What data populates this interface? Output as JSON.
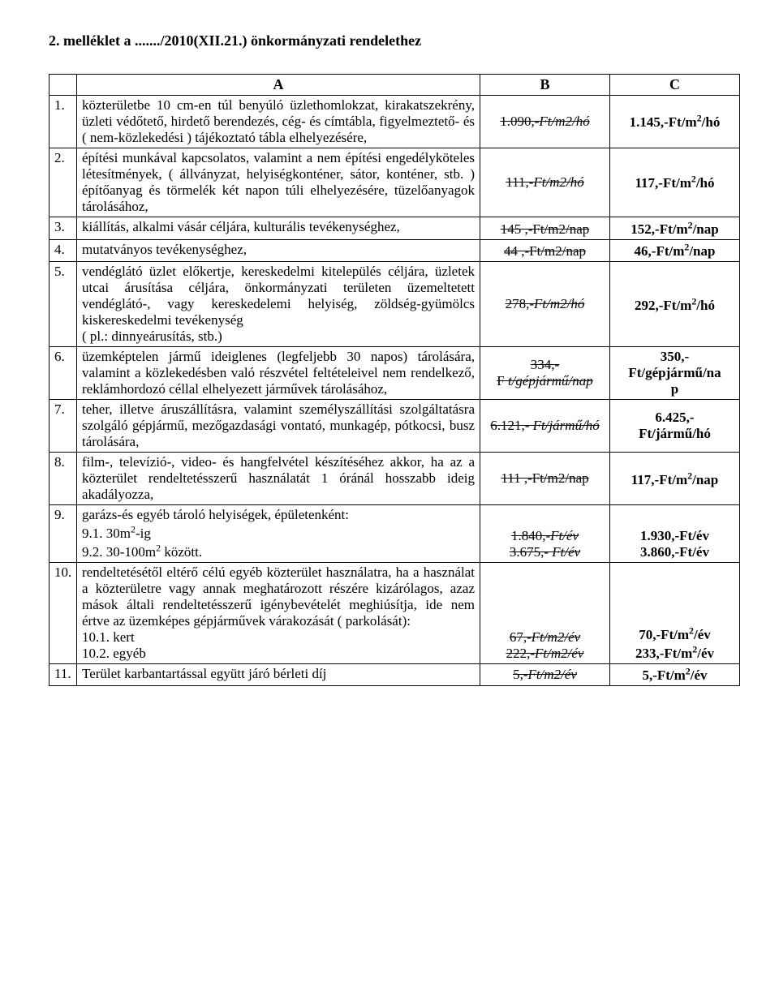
{
  "title": "2. melléklet a ......./2010(XII.21.) önkormányzati rendelethez",
  "header": {
    "A": "A",
    "B": "B",
    "C": "C"
  },
  "rows": [
    {
      "n": "1.",
      "a": "közterületbe 10 cm-en túl benyúló üzlethomlokzat, kirakatszekrény, üzleti védőtető, hirdető berendezés, cég- és címtábla, figyelmeztető- és ( nem-közlekedési ) tájékoztató tábla elhelyezésére,",
      "b_strike": "1.090",
      "b_italic": ",-Ft/m2/hó",
      "c": "1.145,-Ft/m",
      "c_sup": "2",
      "c_tail": "/hó"
    },
    {
      "n": "2.",
      "a": "építési munkával kapcsolatos, valamint a nem építési engedélyköteles létesítmények, ( állványzat, helyiségkonténer, sátor, konténer, stb. ) építőanyag és törmelék két napon túli elhelyezésére, tüzelőanyagok tárolásához,",
      "b_strike": "111",
      "b_italic": ",-Ft/m2/hó",
      "c": "117,-Ft/m",
      "c_sup": "2",
      "c_tail": "/hó"
    },
    {
      "n": "3.",
      "a": "kiállítás, alkalmi vásár céljára, kulturális tevékenységhez,",
      "b_strike": "145",
      "b_plain": " ,-Ft/m2/nap",
      "c": "152,-Ft/m",
      "c_sup": "2",
      "c_tail": "/nap"
    },
    {
      "n": "4.",
      "a": "mutatványos tevékenységhez,",
      "b_strike": "44",
      "b_plain": " ,-Ft/m2/nap",
      "c": "46,-Ft/m",
      "c_sup": "2",
      "c_tail": "/nap"
    },
    {
      "n": "5.",
      "a": "vendéglátó üzlet előkertje, kereskedelmi kitelepülés céljára, üzletek utcai árusítása céljára, önkormányzati területen üzemeltetett vendéglátó-, vagy kereskedelemi helyiség, zöldség-gyümölcs kiskereskedelmi tevékenység\n( pl.: dinnyeárusítás, stb.)",
      "b_strike": "278",
      "b_italic": ",-Ft/m2/hó",
      "c": "292,-Ft/m",
      "c_sup": "2",
      "c_tail": "/hó"
    },
    {
      "n": "6.",
      "a": "üzemképtelen jármű ideiglenes (legfeljebb 30 napos) tárolására, valamint a közlekedésben való részvétel feltételeivel nem rendelkező, reklámhordozó céllal elhelyezett járművek tárolásához,",
      "b_line1_strike": "334,-",
      "b_line2_strike": "F",
      "b_line2_italic": " t/gépjármű/nap",
      "c_line1": "350,-",
      "c_line2": "Ft/gépjármű/na",
      "c_line3": "p"
    },
    {
      "n": "7.",
      "a": "teher, illetve áruszállításra, valamint személyszállítási szolgáltatásra szolgáló gépjármű, mezőgazdasági vontató, munkagép, pótkocsi, busz tárolására,",
      "b_strike": "6.121,-",
      "b_italic": " Ft/jármű/hó",
      "c_line1": "6.425,-",
      "c_line2": "Ft/jármű/hó"
    },
    {
      "n": "8.",
      "a": "film-, televízió-, video- és hangfelvétel készítéséhez akkor, ha az a közterület rendeltetésszerű használatát 1 óránál  hosszabb ideig akadályozza,",
      "b_strike": "111",
      "b_plain": " ,-Ft/m2/nap",
      "c": "117,-Ft/m",
      "c_sup": "2",
      "c_tail": "/nap"
    },
    {
      "n": "9.",
      "a_head": "garázs-és egyéb tároló helyiségek, épületenként:",
      "a_sub1_pre": "9.1. 30m",
      "a_sub1_sup": "2",
      "a_sub1_post": "-ig",
      "a_sub2_pre": "9.2. 30-100m",
      "a_sub2_sup": "2",
      "a_sub2_post": " között.",
      "b_sub1_strike": "1.840",
      "b_sub1_italic": ",-Ft/év",
      "b_sub2_strike": "3.675,-",
      "b_sub2_italic": " Ft/év",
      "c_sub1": "1.930,-Ft/év",
      "c_sub2": "3.860,-Ft/év"
    },
    {
      "n": "10.",
      "a_head": "rendeltetésétől eltérő célú egyéb közterület használatra, ha a használat a közterületre vagy annak meghatározott részére kizárólagos, azaz mások általi rendeltetésszerű igénybevételét meghiúsítja, ide nem értve az üzemképes gépjárművek várakozását ( parkolását):",
      "a_sub1": "10.1. kert",
      "a_sub2": "10.2. egyéb",
      "b_sub1_strike": "67",
      "b_sub1_italic": ",-Ft/m2/év",
      "b_sub2_strike": "222",
      "b_sub2_italic": ",-Ft/m2/év",
      "c_sub1_pre": "70,-Ft/m",
      "c_sub1_sup": "2",
      "c_sub1_tail": "/év",
      "c_sub2_pre": "233,-Ft/m",
      "c_sub2_sup": "2",
      "c_sub2_tail": "/év"
    },
    {
      "n": "11.",
      "a": "Terület karbantartással együtt járó  bérleti díj",
      "b_strike": "5",
      "b_italic": ",-Ft/m2/év",
      "c": "5,-Ft/m",
      "c_sup": "2",
      "c_tail": "/év"
    }
  ]
}
